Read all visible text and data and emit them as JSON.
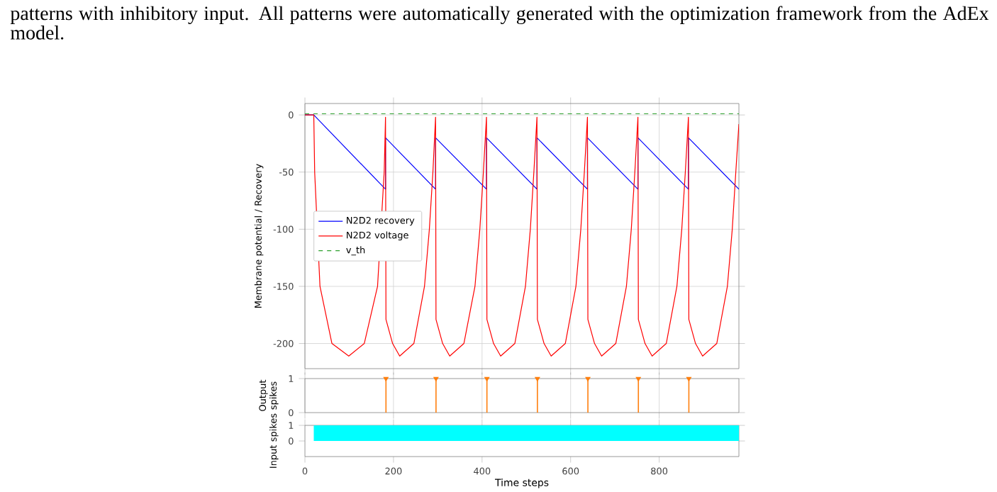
{
  "chart_data": [
    {
      "type": "line",
      "ylabel": "Membrane potential / Recovery",
      "annotations": [
        "patterns with inhibitory input. All patterns were automatically generated with the optimization framework from the AdEx model."
      ],
      "xlim": [
        0,
        980
      ],
      "ylim": [
        -222,
        10
      ],
      "xticks": [
        0,
        200,
        400,
        600,
        800
      ],
      "yticks": [
        0,
        -50,
        -100,
        -150,
        -200
      ],
      "tick_labels": "y",
      "grid": true,
      "legend": "center left",
      "series": [
        {
          "name": "N2D2 recovery",
          "color": "#0000ff",
          "x": [
            0,
            20,
            182,
            182,
            295,
            295,
            410,
            410,
            524,
            524,
            638,
            638,
            752,
            752,
            866,
            866,
            980
          ],
          "values": [
            0,
            0,
            -65,
            -20,
            -65,
            -20,
            -65,
            -20,
            -65,
            -20,
            -65,
            -20,
            -65,
            -20,
            -65,
            -20,
            -65
          ]
        },
        {
          "name": "N2D2 voltage",
          "color": "#ff0000",
          "x": [
            0,
            20,
            22,
            27,
            34,
            61,
            99,
            134,
            164,
            173,
            179,
            182,
            183,
            198,
            214,
            246,
            270,
            281,
            289,
            295,
            296,
            311,
            327,
            359,
            384,
            395,
            403,
            410,
            411,
            426,
            442,
            474,
            498,
            509,
            517,
            524,
            525,
            540,
            556,
            588,
            612,
            623,
            631,
            638,
            639,
            654,
            670,
            702,
            726,
            737,
            745,
            752,
            753,
            768,
            784,
            816,
            840,
            851,
            859,
            866,
            867,
            882,
            898,
            930,
            954,
            965,
            973,
            980
          ],
          "values": [
            0,
            0,
            -50,
            null,
            -150,
            -200,
            -211,
            -200,
            -150,
            null,
            -50,
            -2,
            -179,
            -200,
            -211,
            -200,
            -150,
            -100,
            -50,
            -2,
            -179,
            -200,
            -211,
            -200,
            -150,
            -100,
            -50,
            -2,
            -179,
            -200,
            -211,
            -200,
            -150,
            -100,
            -50,
            -2,
            -179,
            -200,
            -211,
            -200,
            -150,
            -100,
            -50,
            -2,
            -179,
            -200,
            -211,
            -200,
            -150,
            -100,
            -50,
            -2,
            -179,
            -200,
            -211,
            -200,
            -150,
            -100,
            -50,
            -2,
            -179,
            -200,
            -211,
            -200,
            -150,
            -100,
            -50,
            -8
          ]
        },
        {
          "name": "v_th",
          "color": "#2ca02c",
          "line_style": "dashed",
          "x": [
            0,
            980
          ],
          "values": [
            1,
            1
          ]
        }
      ]
    },
    {
      "type": "lollipop",
      "ylabel": "Output spikes",
      "xlim": [
        0,
        980
      ],
      "ylim": [
        0,
        1
      ],
      "xticks": [
        0,
        200,
        400,
        600,
        800
      ],
      "yticks": [
        0,
        1
      ],
      "tick_labels": "y",
      "grid": "x",
      "marker": "triangle",
      "series": [
        {
          "color": "#ff7f0e",
          "x": [
            183,
            296,
            411,
            525,
            639,
            753,
            867
          ],
          "values": [
            1,
            1,
            1,
            1,
            1,
            1,
            1
          ]
        }
      ]
    },
    {
      "type": "area",
      "ylabel": "Input spikes",
      "xlabel": "Time steps",
      "xlim": [
        0,
        980
      ],
      "ylim": [
        -1,
        1
      ],
      "xticks": [
        0,
        200,
        400,
        600,
        800
      ],
      "yticks": [
        0,
        1
      ],
      "series": [
        {
          "color": "#00ffff",
          "x": [
            20,
            980
          ],
          "values": [
            1,
            1
          ]
        }
      ]
    }
  ]
}
